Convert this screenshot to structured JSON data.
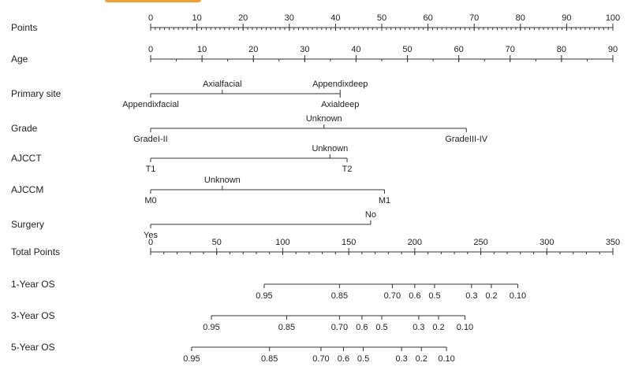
{
  "chart_data": {
    "type": "nomogram",
    "rows": [
      {
        "label": "Points",
        "kind": "axis",
        "min": 0,
        "max": 100,
        "major": [
          0,
          10,
          20,
          30,
          40,
          50,
          60,
          70,
          80,
          90,
          100
        ],
        "minor_step": 1
      },
      {
        "label": "Age",
        "kind": "axis",
        "min": 0,
        "max": 90,
        "major": [
          0,
          10,
          20,
          30,
          40,
          50,
          60,
          70,
          80,
          90
        ],
        "minor_step": 5,
        "point_end": 100
      },
      {
        "label": "Primary site",
        "kind": "categorical",
        "categories": [
          {
            "name": "Appendixfacial",
            "points": 0,
            "pos": "below"
          },
          {
            "name": "Axialfacial",
            "points": 15.5,
            "pos": "above"
          },
          {
            "name": "Axialdeep",
            "points": 41,
            "pos": "below"
          },
          {
            "name": "Appendixdeep",
            "points": 41,
            "pos": "above"
          }
        ]
      },
      {
        "label": "Grade",
        "kind": "categorical",
        "categories": [
          {
            "name": "GradeI-II",
            "points": 0,
            "pos": "below"
          },
          {
            "name": "Unknown",
            "points": 37.5,
            "pos": "above"
          },
          {
            "name": "GradeIII-IV",
            "points": 68.3,
            "pos": "below"
          }
        ]
      },
      {
        "label": "AJCCT",
        "kind": "categorical",
        "categories": [
          {
            "name": "T1",
            "points": 0,
            "pos": "below"
          },
          {
            "name": "Unknown",
            "points": 38.8,
            "pos": "above"
          },
          {
            "name": "T2",
            "points": 42.5,
            "pos": "below"
          }
        ]
      },
      {
        "label": "AJCCM",
        "kind": "categorical",
        "categories": [
          {
            "name": "M0",
            "points": 0,
            "pos": "below"
          },
          {
            "name": "Unknown",
            "points": 15.5,
            "pos": "above"
          },
          {
            "name": "M1",
            "points": 50.6,
            "pos": "below"
          }
        ]
      },
      {
        "label": "Surgery",
        "kind": "categorical",
        "categories": [
          {
            "name": "Yes",
            "points": 0,
            "pos": "below"
          },
          {
            "name": "No",
            "points": 47.6,
            "pos": "above"
          }
        ]
      },
      {
        "label": "Total Points",
        "kind": "axis",
        "min": 0,
        "max": 350,
        "major": [
          0,
          50,
          100,
          150,
          200,
          250,
          300,
          350
        ],
        "minor_step": 10,
        "point_end": 100
      },
      {
        "label": "1-Year OS",
        "kind": "survival",
        "ticks": [
          {
            "label": "0.95",
            "total": 86
          },
          {
            "label": "0.85",
            "total": 143
          },
          {
            "label": "0.70",
            "total": 183
          },
          {
            "label": "0.6",
            "total": 200
          },
          {
            "label": "0.5",
            "total": 215
          },
          {
            "label": "0.3",
            "total": 243
          },
          {
            "label": "0.2",
            "total": 258
          },
          {
            "label": "0.10",
            "total": 278
          }
        ]
      },
      {
        "label": "3-Year OS",
        "kind": "survival",
        "ticks": [
          {
            "label": "0.95",
            "total": 46
          },
          {
            "label": "0.85",
            "total": 103
          },
          {
            "label": "0.70",
            "total": 143
          },
          {
            "label": "0.6",
            "total": 160
          },
          {
            "label": "0.5",
            "total": 175
          },
          {
            "label": "0.3",
            "total": 203
          },
          {
            "label": "0.2",
            "total": 218
          },
          {
            "label": "0.10",
            "total": 238
          }
        ]
      },
      {
        "label": "5-Year OS",
        "kind": "survival",
        "ticks": [
          {
            "label": "0.95",
            "total": 31
          },
          {
            "label": "0.85",
            "total": 90
          },
          {
            "label": "0.70",
            "total": 129
          },
          {
            "label": "0.6",
            "total": 146
          },
          {
            "label": "0.5",
            "total": 161
          },
          {
            "label": "0.3",
            "total": 190
          },
          {
            "label": "0.2",
            "total": 205
          },
          {
            "label": "0.10",
            "total": 224
          }
        ]
      }
    ]
  }
}
